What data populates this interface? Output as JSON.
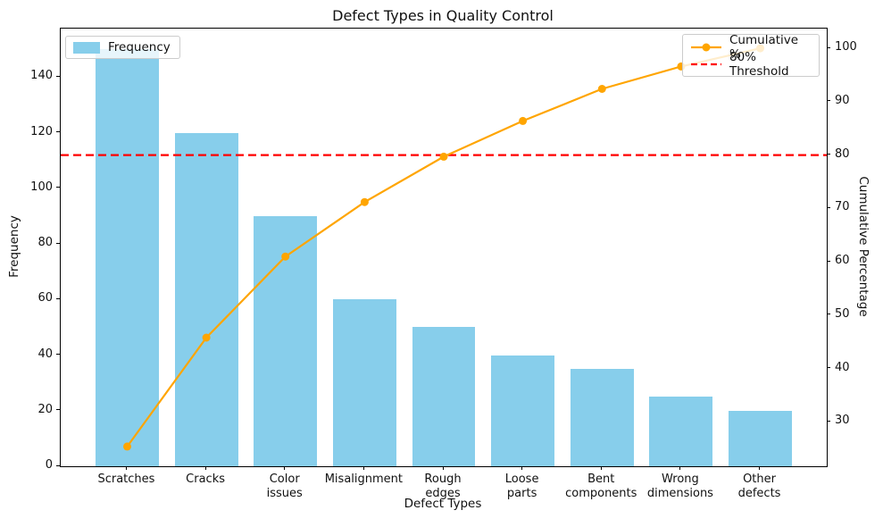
{
  "title": "Defect Types in Quality Control",
  "chart_data": {
    "type": "bar",
    "subtype": "pareto",
    "title": "Defect Types in Quality Control",
    "xlabel": "Defect Types",
    "ylabel_left": "Frequency",
    "ylabel_right": "Cumulative Percentage",
    "categories": [
      "Scratches",
      "Cracks",
      "Color issues",
      "Misalignment",
      "Rough edges",
      "Loose parts",
      "Bent components",
      "Wrong dimensions",
      "Other defects"
    ],
    "category_label_lines": [
      [
        "Scratches"
      ],
      [
        "Cracks"
      ],
      [
        "Color",
        "issues"
      ],
      [
        "Misalignment"
      ],
      [
        "Rough",
        "edges"
      ],
      [
        "Loose",
        "parts"
      ],
      [
        "Bent",
        "components"
      ],
      [
        "Wrong",
        "dimensions"
      ],
      [
        "Other",
        "defects"
      ]
    ],
    "series": [
      {
        "name": "Frequency",
        "type": "bar",
        "values": [
          150,
          120,
          90,
          60,
          50,
          40,
          35,
          25,
          20
        ],
        "color": "#87CEEB"
      },
      {
        "name": "Cumulative %",
        "type": "line",
        "values": [
          25.4,
          45.8,
          61.0,
          71.2,
          79.7,
          86.4,
          92.4,
          96.6,
          100.0
        ],
        "color": "#FFA500"
      }
    ],
    "threshold": {
      "label": "80% Threshold",
      "value": 80,
      "color": "#FF0000",
      "style": "dashed"
    },
    "yticks_left": [
      0,
      20,
      40,
      60,
      80,
      100,
      120,
      140
    ],
    "yticks_right": [
      30,
      40,
      50,
      60,
      70,
      80,
      90,
      100
    ],
    "ylim_left": [
      0,
      157.5
    ],
    "ylim_right": [
      21.7,
      103.7
    ],
    "grid": false,
    "legend": {
      "frequency": "Frequency",
      "cumulative": "Cumulative %",
      "threshold": "80% Threshold",
      "position_frequency": "upper left",
      "position_cumulative": "upper right"
    }
  }
}
